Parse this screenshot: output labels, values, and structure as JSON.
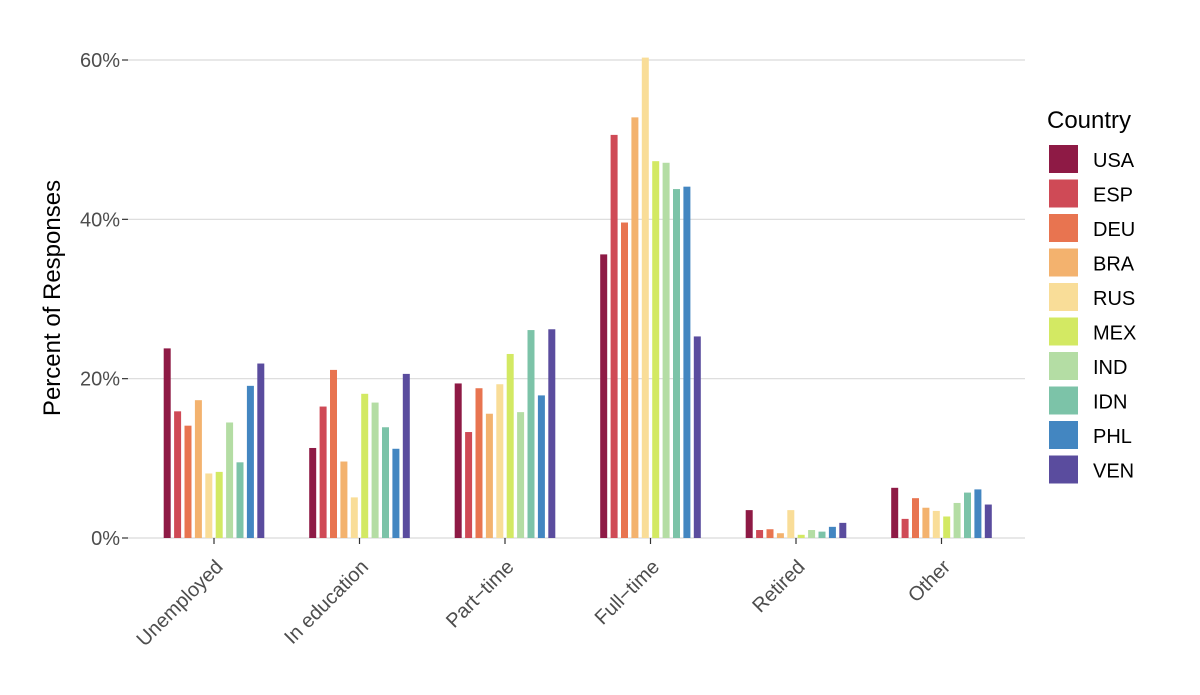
{
  "chart_data": {
    "type": "bar",
    "title": "",
    "xlabel": "",
    "ylabel": "Percent of Responses",
    "ylim": [
      0,
      62
    ],
    "yticks": [
      0,
      20,
      40,
      60
    ],
    "ytick_labels": [
      "0%",
      "20%",
      "40%",
      "60%"
    ],
    "grid": true,
    "legend_title": "Country",
    "legend_position": "right",
    "categories": [
      "Unemployed",
      "In education",
      "Part−time",
      "Full−time",
      "Retired",
      "Other"
    ],
    "series": [
      {
        "name": "USA",
        "color": "#8e1a45",
        "values": [
          23.8,
          11.3,
          19.4,
          35.6,
          3.5,
          6.3
        ]
      },
      {
        "name": "ESP",
        "color": "#cf4a56",
        "values": [
          15.9,
          16.5,
          13.3,
          50.6,
          1.0,
          2.4
        ]
      },
      {
        "name": "DEU",
        "color": "#e87450",
        "values": [
          14.1,
          21.1,
          18.8,
          39.6,
          1.1,
          5.0
        ]
      },
      {
        "name": "BRA",
        "color": "#f3b26e",
        "values": [
          17.3,
          9.6,
          15.6,
          52.8,
          0.6,
          3.8
        ]
      },
      {
        "name": "RUS",
        "color": "#f9dd98",
        "values": [
          8.1,
          5.1,
          19.3,
          60.3,
          3.5,
          3.4
        ]
      },
      {
        "name": "MEX",
        "color": "#d3e963",
        "values": [
          8.3,
          18.1,
          23.1,
          47.3,
          0.4,
          2.7
        ]
      },
      {
        "name": "IND",
        "color": "#b4dda4",
        "values": [
          14.5,
          17.0,
          15.8,
          47.1,
          1.0,
          4.4
        ]
      },
      {
        "name": "IDN",
        "color": "#7cc3a8",
        "values": [
          9.5,
          13.9,
          26.1,
          43.8,
          0.8,
          5.7
        ]
      },
      {
        "name": "PHL",
        "color": "#4386c1",
        "values": [
          19.1,
          11.2,
          17.9,
          44.1,
          1.4,
          6.1
        ]
      },
      {
        "name": "VEN",
        "color": "#5a4c9e",
        "values": [
          21.9,
          20.6,
          26.2,
          25.3,
          1.9,
          4.2
        ]
      }
    ]
  }
}
